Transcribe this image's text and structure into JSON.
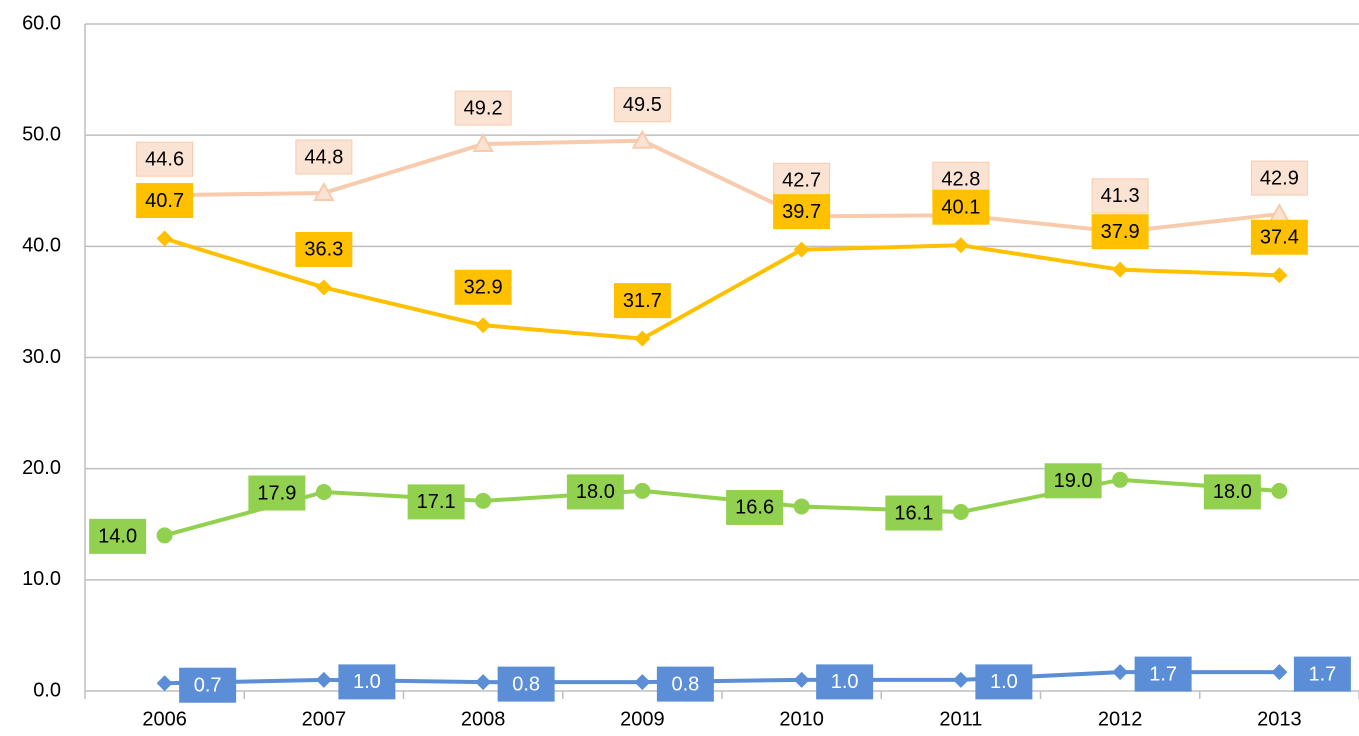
{
  "chart_data": {
    "type": "line",
    "categories": [
      "2006",
      "2007",
      "2008",
      "2009",
      "2010",
      "2011",
      "2012",
      "2013"
    ],
    "series": [
      {
        "color": "#f8cbad",
        "marker": "triangle",
        "values": [
          44.6,
          44.8,
          49.2,
          49.5,
          42.7,
          42.8,
          41.3,
          42.9
        ],
        "value_labels": [
          "44.6",
          "44.8",
          "49.2",
          "49.5",
          "42.7",
          "42.8",
          "41.3",
          "42.9"
        ]
      },
      {
        "color": "#ffc000",
        "marker": "diamond",
        "values": [
          40.7,
          36.3,
          32.9,
          31.7,
          39.7,
          40.1,
          37.9,
          37.4
        ],
        "value_labels": [
          "40.7",
          "36.3",
          "32.9",
          "31.7",
          "39.7",
          "40.1",
          "37.9",
          "37.4"
        ]
      },
      {
        "color": "#92d050",
        "marker": "circle",
        "values": [
          14.0,
          17.9,
          17.1,
          18.0,
          16.6,
          16.1,
          19.0,
          18.0
        ],
        "value_labels": [
          "14.0",
          "17.9",
          "17.1",
          "18.0",
          "16.6",
          "16.1",
          "19.0",
          "18.0"
        ]
      },
      {
        "color": "#5b8ed6",
        "marker": "diamond",
        "values": [
          0.7,
          1.0,
          0.8,
          0.8,
          1.0,
          1.0,
          1.7,
          1.7
        ],
        "value_labels": [
          "0.7",
          "1.0",
          "0.8",
          "0.8",
          "1.0",
          "1.0",
          "1.7",
          "1.7"
        ]
      }
    ],
    "ylim": [
      0,
      60
    ],
    "yticks": [
      {
        "value": 0,
        "label": "0.0"
      },
      {
        "value": 10,
        "label": "10.0"
      },
      {
        "value": 20,
        "label": "20.0"
      },
      {
        "value": 30,
        "label": "30.0"
      },
      {
        "value": 40,
        "label": "40.0"
      },
      {
        "value": 50,
        "label": "50.0"
      },
      {
        "value": 60,
        "label": "60.0"
      }
    ],
    "grid": true
  }
}
